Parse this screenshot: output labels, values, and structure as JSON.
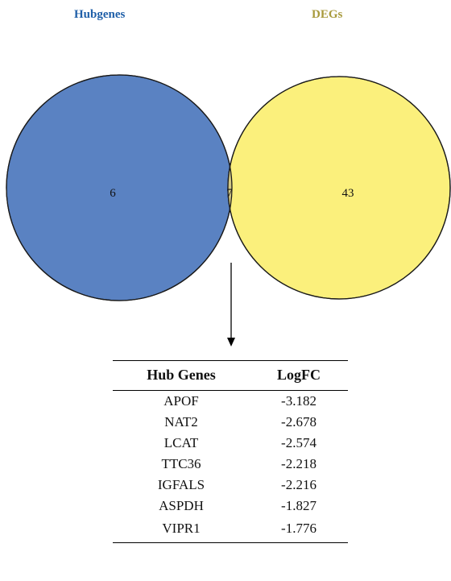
{
  "venn": {
    "set_a": {
      "label": "Hubgenes",
      "only_count": "6",
      "color": "#5a82c2"
    },
    "set_b": {
      "label": "DEGs",
      "only_count": "43",
      "color": "#fbf07c"
    },
    "intersection": {
      "count": "7",
      "color": "#d3c884"
    }
  },
  "table": {
    "headers": [
      "Hub Genes",
      "LogFC"
    ],
    "rows": [
      [
        "APOF",
        "-3.182"
      ],
      [
        "NAT2",
        "-2.678"
      ],
      [
        "LCAT",
        "-2.574"
      ],
      [
        "TTC36",
        "-2.218"
      ],
      [
        "IGFALS",
        "-2.216"
      ],
      [
        "ASPDH",
        "-1.827"
      ],
      [
        "VIPR1",
        "-1.776"
      ]
    ]
  }
}
